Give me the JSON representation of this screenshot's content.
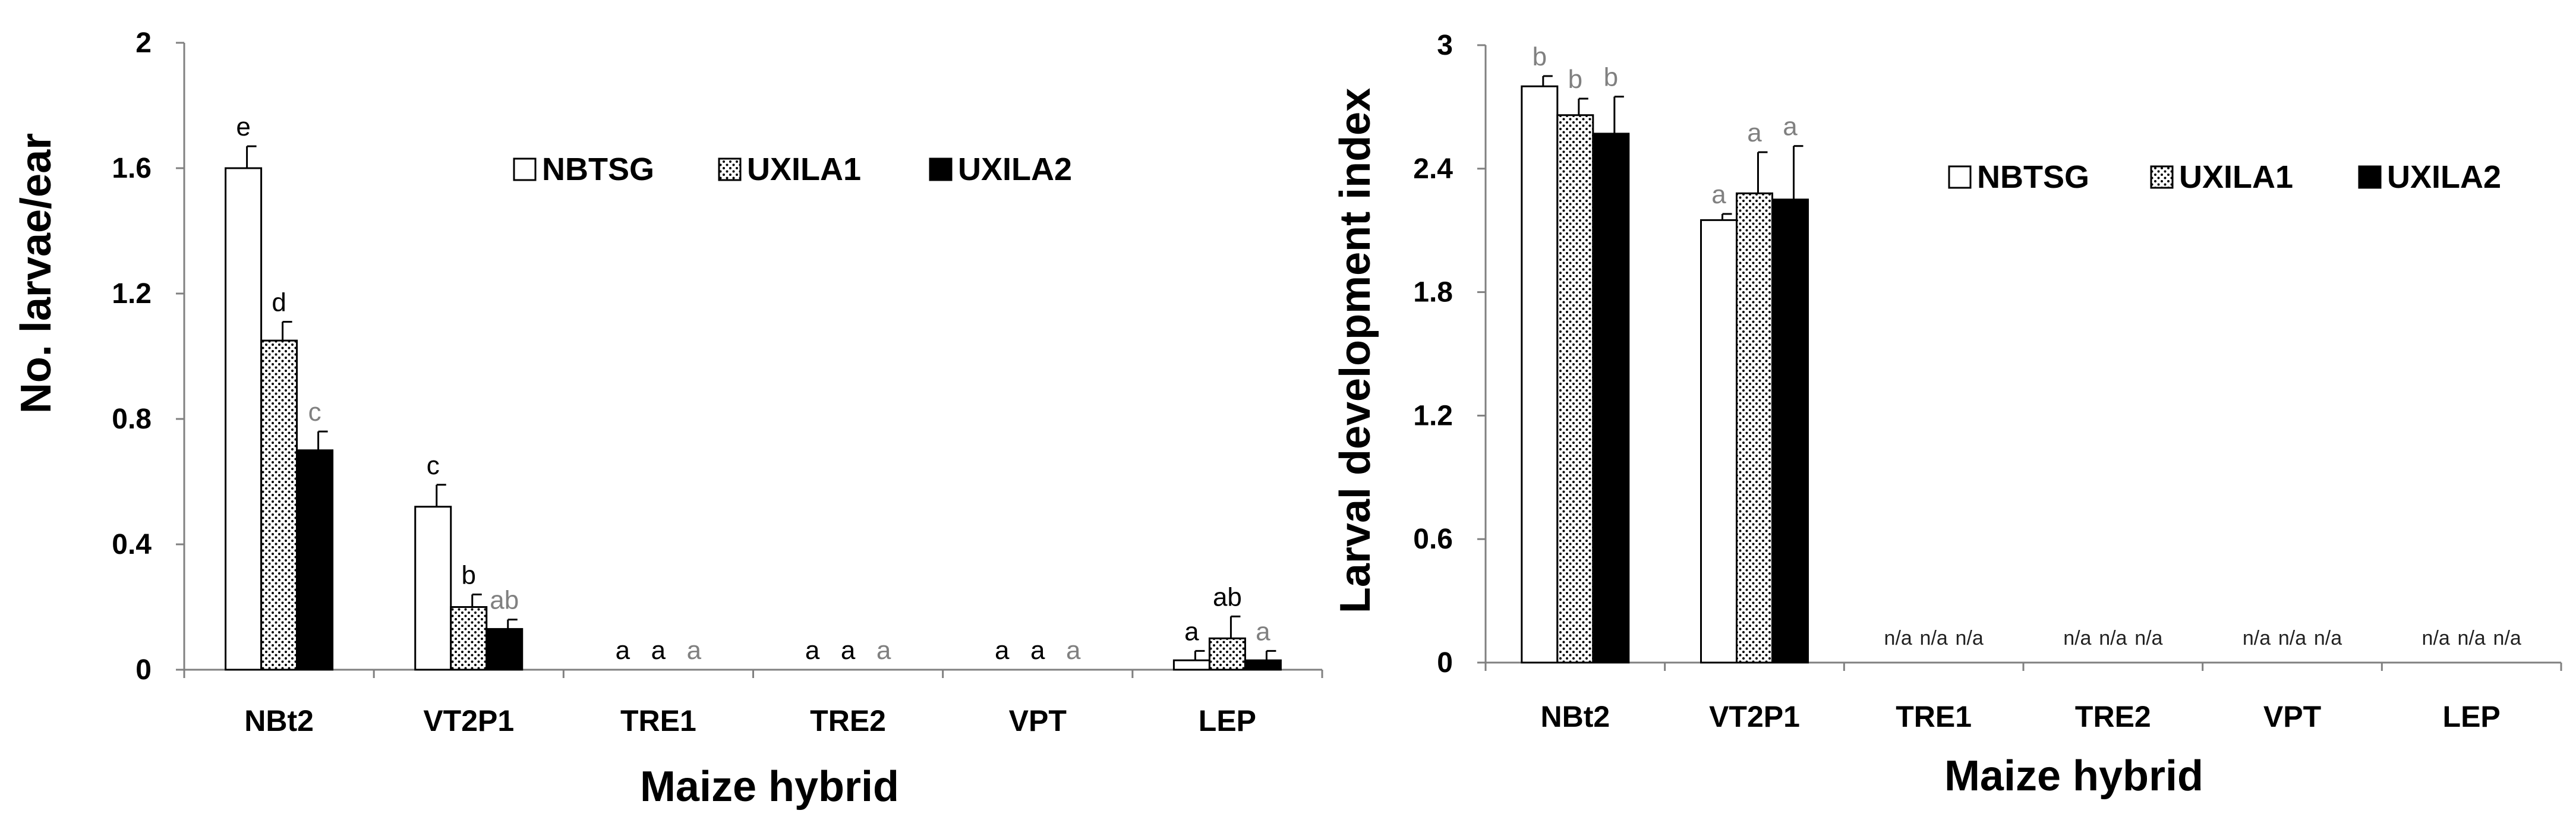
{
  "chart_data": [
    {
      "type": "bar",
      "categories": [
        "NBt2",
        "VT2P1",
        "TRE1",
        "TRE2",
        "VPT",
        "LEP"
      ],
      "series": [
        {
          "name": "NBTSG",
          "fill": "white",
          "values": [
            1.6,
            0.52,
            0,
            0,
            0,
            0.03
          ],
          "errors": [
            0.07,
            0.07,
            0,
            0,
            0,
            0.03
          ]
        },
        {
          "name": "UXILA1",
          "fill": "dotted",
          "values": [
            1.05,
            0.2,
            0,
            0,
            0,
            0.1
          ],
          "errors": [
            0.06,
            0.04,
            0,
            0,
            0,
            0.07
          ]
        },
        {
          "name": "UXILA2",
          "fill": "black",
          "values": [
            0.7,
            0.13,
            0,
            0,
            0,
            0.03
          ],
          "errors": [
            0.06,
            0.03,
            0,
            0,
            0,
            0.03
          ]
        }
      ],
      "letters": [
        [
          "e",
          "d",
          "c"
        ],
        [
          "c",
          "b",
          "ab"
        ],
        [
          "a",
          "a",
          "a"
        ],
        [
          "a",
          "a",
          "a"
        ],
        [
          "a",
          "a",
          "a"
        ],
        [
          "a",
          "ab",
          "a"
        ]
      ],
      "letter_colors": [
        "#000000",
        "#000000",
        "#808080"
      ],
      "yticks": [
        "0",
        "0.4",
        "0.8",
        "1.2",
        "1.6",
        "2"
      ],
      "ylim": [
        0,
        2
      ],
      "xlabel": "Maize hybrid",
      "ylabel": "No. larvae/ear",
      "legend_position": "top-right"
    },
    {
      "type": "bar",
      "categories": [
        "NBt2",
        "VT2P1",
        "TRE1",
        "TRE2",
        "VPT",
        "LEP"
      ],
      "series": [
        {
          "name": "NBTSG",
          "fill": "white",
          "values": [
            2.8,
            2.15,
            null,
            null,
            null,
            null
          ],
          "errors": [
            0.05,
            0.03,
            0,
            0,
            0,
            0
          ]
        },
        {
          "name": "UXILA1",
          "fill": "dotted",
          "values": [
            2.66,
            2.28,
            null,
            null,
            null,
            null
          ],
          "errors": [
            0.08,
            0.2,
            0,
            0,
            0,
            0
          ]
        },
        {
          "name": "UXILA2",
          "fill": "black",
          "values": [
            2.57,
            2.25,
            null,
            null,
            null,
            null
          ],
          "errors": [
            0.18,
            0.26,
            0,
            0,
            0,
            0
          ]
        }
      ],
      "letters": [
        [
          "b",
          "b",
          "b"
        ],
        [
          "a",
          "a",
          "a"
        ],
        [
          "n/a",
          "n/a",
          "n/a"
        ],
        [
          "n/a",
          "n/a",
          "n/a"
        ],
        [
          "n/a",
          "n/a",
          "n/a"
        ],
        [
          "n/a",
          "n/a",
          "n/a"
        ]
      ],
      "letter_colors": [
        "#808080",
        "#808080",
        "#808080"
      ],
      "yticks": [
        "0",
        "0.6",
        "1.2",
        "1.8",
        "2.4",
        "3"
      ],
      "ylim": [
        0,
        3
      ],
      "xlabel": "Maize hybrid",
      "ylabel": "Larval development index",
      "legend_position": "top-right"
    }
  ]
}
